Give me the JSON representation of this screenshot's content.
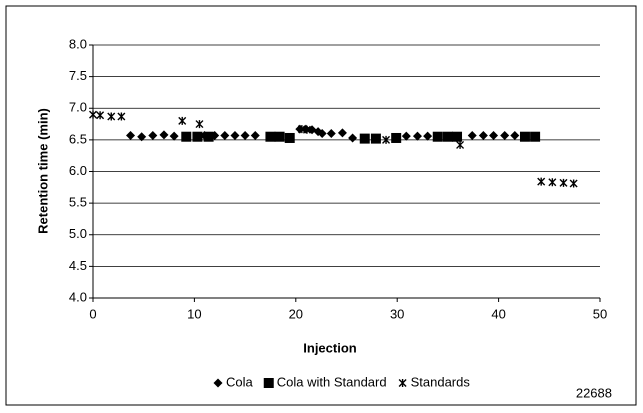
{
  "chart_data": {
    "type": "scatter",
    "x_label": "Injection",
    "y_label": "Retention time (min)",
    "annotation": "22688",
    "xlim": [
      0,
      50
    ],
    "xticks": [
      0,
      10,
      20,
      30,
      40,
      50
    ],
    "ylim": [
      4,
      8
    ],
    "yticks": [
      {
        "value": 4,
        "label": "4.0"
      },
      {
        "value": 4.5,
        "label": "4.5"
      },
      {
        "value": 5,
        "label": "5.0"
      },
      {
        "value": 5.5,
        "label": "5.5"
      },
      {
        "value": 6,
        "label": "6.0"
      },
      {
        "value": 6.5,
        "label": "6.5"
      },
      {
        "value": 7,
        "label": "7.0"
      },
      {
        "value": 7.5,
        "label": "7.5"
      },
      {
        "value": 8,
        "label": "8.0"
      }
    ],
    "grid": true,
    "legend": "bottom",
    "series": [
      {
        "name": "Cola",
        "color": "#000000",
        "marker": "diamond",
        "x": [
          3.7,
          4.8,
          5.9,
          7.0,
          8.0,
          11,
          12,
          13,
          14,
          15,
          16,
          20.4,
          21,
          21.6,
          22.2,
          22.6,
          23.5,
          24.6,
          25.6,
          30.9,
          32,
          33,
          37.4,
          38.5,
          39.5,
          40.6,
          41.6
        ],
        "values": [
          6.57,
          6.55,
          6.57,
          6.58,
          6.56,
          6.57,
          6.57,
          6.57,
          6.57,
          6.57,
          6.57,
          6.67,
          6.67,
          6.66,
          6.63,
          6.6,
          6.6,
          6.61,
          6.53,
          6.56,
          6.56,
          6.56,
          6.57,
          6.57,
          6.57,
          6.57,
          6.57
        ]
      },
      {
        "name": "Cola with Standard",
        "color": "#000000",
        "marker": "square",
        "x": [
          9.2,
          10.3,
          11.4,
          17.5,
          18.4,
          19.4,
          26.8,
          27.9,
          29.9,
          34,
          35,
          35.9,
          42.6,
          43.6
        ],
        "values": [
          6.55,
          6.55,
          6.55,
          6.55,
          6.55,
          6.53,
          6.52,
          6.52,
          6.53,
          6.55,
          6.55,
          6.55,
          6.55,
          6.55
        ]
      },
      {
        "name": "Standards",
        "color": "#000000",
        "marker": "star",
        "x": [
          0,
          0.7,
          1.8,
          2.8,
          8.8,
          10.5,
          20.6,
          21.1,
          28.9,
          36.2,
          44.2,
          45.3,
          46.4,
          47.4
        ],
        "values": [
          6.9,
          6.89,
          6.87,
          6.87,
          6.8,
          6.75,
          6.67,
          6.66,
          6.5,
          6.42,
          5.84,
          5.83,
          5.82,
          5.81
        ]
      }
    ]
  }
}
